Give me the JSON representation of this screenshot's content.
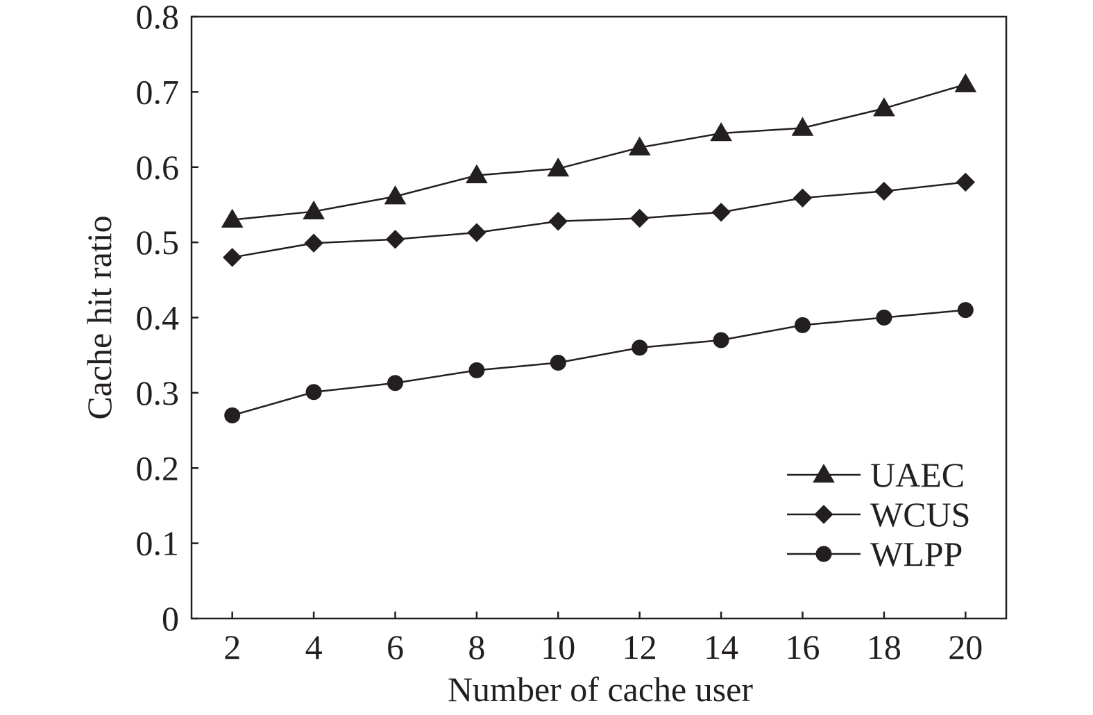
{
  "chart_data": {
    "type": "line",
    "title": "",
    "xlabel": "Number of cache user",
    "ylabel": "Cache hit ratio",
    "x": [
      2,
      4,
      6,
      8,
      10,
      12,
      14,
      16,
      18,
      20
    ],
    "xlim": [
      1,
      21
    ],
    "ylim": [
      0,
      0.8
    ],
    "xticks": [
      2,
      4,
      6,
      8,
      10,
      12,
      14,
      16,
      18,
      20
    ],
    "yticks": [
      "0",
      "0.1",
      "0.2",
      "0.3",
      "0.4",
      "0.5",
      "0.6",
      "0.7",
      "0.8"
    ],
    "grid": false,
    "legend_position": "bottom-right",
    "series": [
      {
        "name": "UAEC",
        "marker": "triangle",
        "color": "#231f20",
        "values": [
          0.53,
          0.541,
          0.561,
          0.589,
          0.598,
          0.626,
          0.645,
          0.652,
          0.678,
          0.71
        ]
      },
      {
        "name": "WCUS",
        "marker": "diamond",
        "color": "#231f20",
        "values": [
          0.48,
          0.499,
          0.504,
          0.513,
          0.528,
          0.532,
          0.54,
          0.559,
          0.568,
          0.58
        ]
      },
      {
        "name": "WLPP",
        "marker": "circle",
        "color": "#231f20",
        "values": [
          0.27,
          0.301,
          0.313,
          0.33,
          0.34,
          0.36,
          0.37,
          0.39,
          0.4,
          0.41
        ]
      }
    ]
  }
}
